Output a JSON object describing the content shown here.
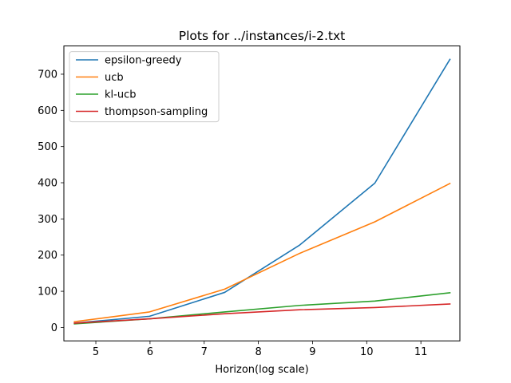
{
  "chart_data": {
    "type": "line",
    "title": "Plots for ../instances/i-2.txt",
    "xlabel": "Horizon(log scale)",
    "ylabel": "",
    "xlim": [
      4.41,
      11.72
    ],
    "ylim": [
      -37,
      778
    ],
    "xticks": [
      5,
      6,
      7,
      8,
      9,
      10,
      11
    ],
    "yticks": [
      0,
      100,
      200,
      300,
      400,
      500,
      600,
      700
    ],
    "x": [
      4.605,
      5.991,
      7.378,
      8.764,
      10.15,
      11.536
    ],
    "series": [
      {
        "name": "epsilon-greedy",
        "color": "#1f77b4",
        "values": [
          12,
          31,
          97,
          228,
          399,
          741
        ]
      },
      {
        "name": "ucb",
        "color": "#ff7f0e",
        "values": [
          16,
          43,
          106,
          205,
          292,
          398
        ]
      },
      {
        "name": "kl-ucb",
        "color": "#2ca02c",
        "values": [
          10,
          24,
          43,
          61,
          73,
          96
        ]
      },
      {
        "name": "thompson-sampling",
        "color": "#d62728",
        "values": [
          12,
          24,
          38,
          49,
          55,
          65
        ]
      }
    ],
    "legend_position": "top-left",
    "grid": false
  }
}
